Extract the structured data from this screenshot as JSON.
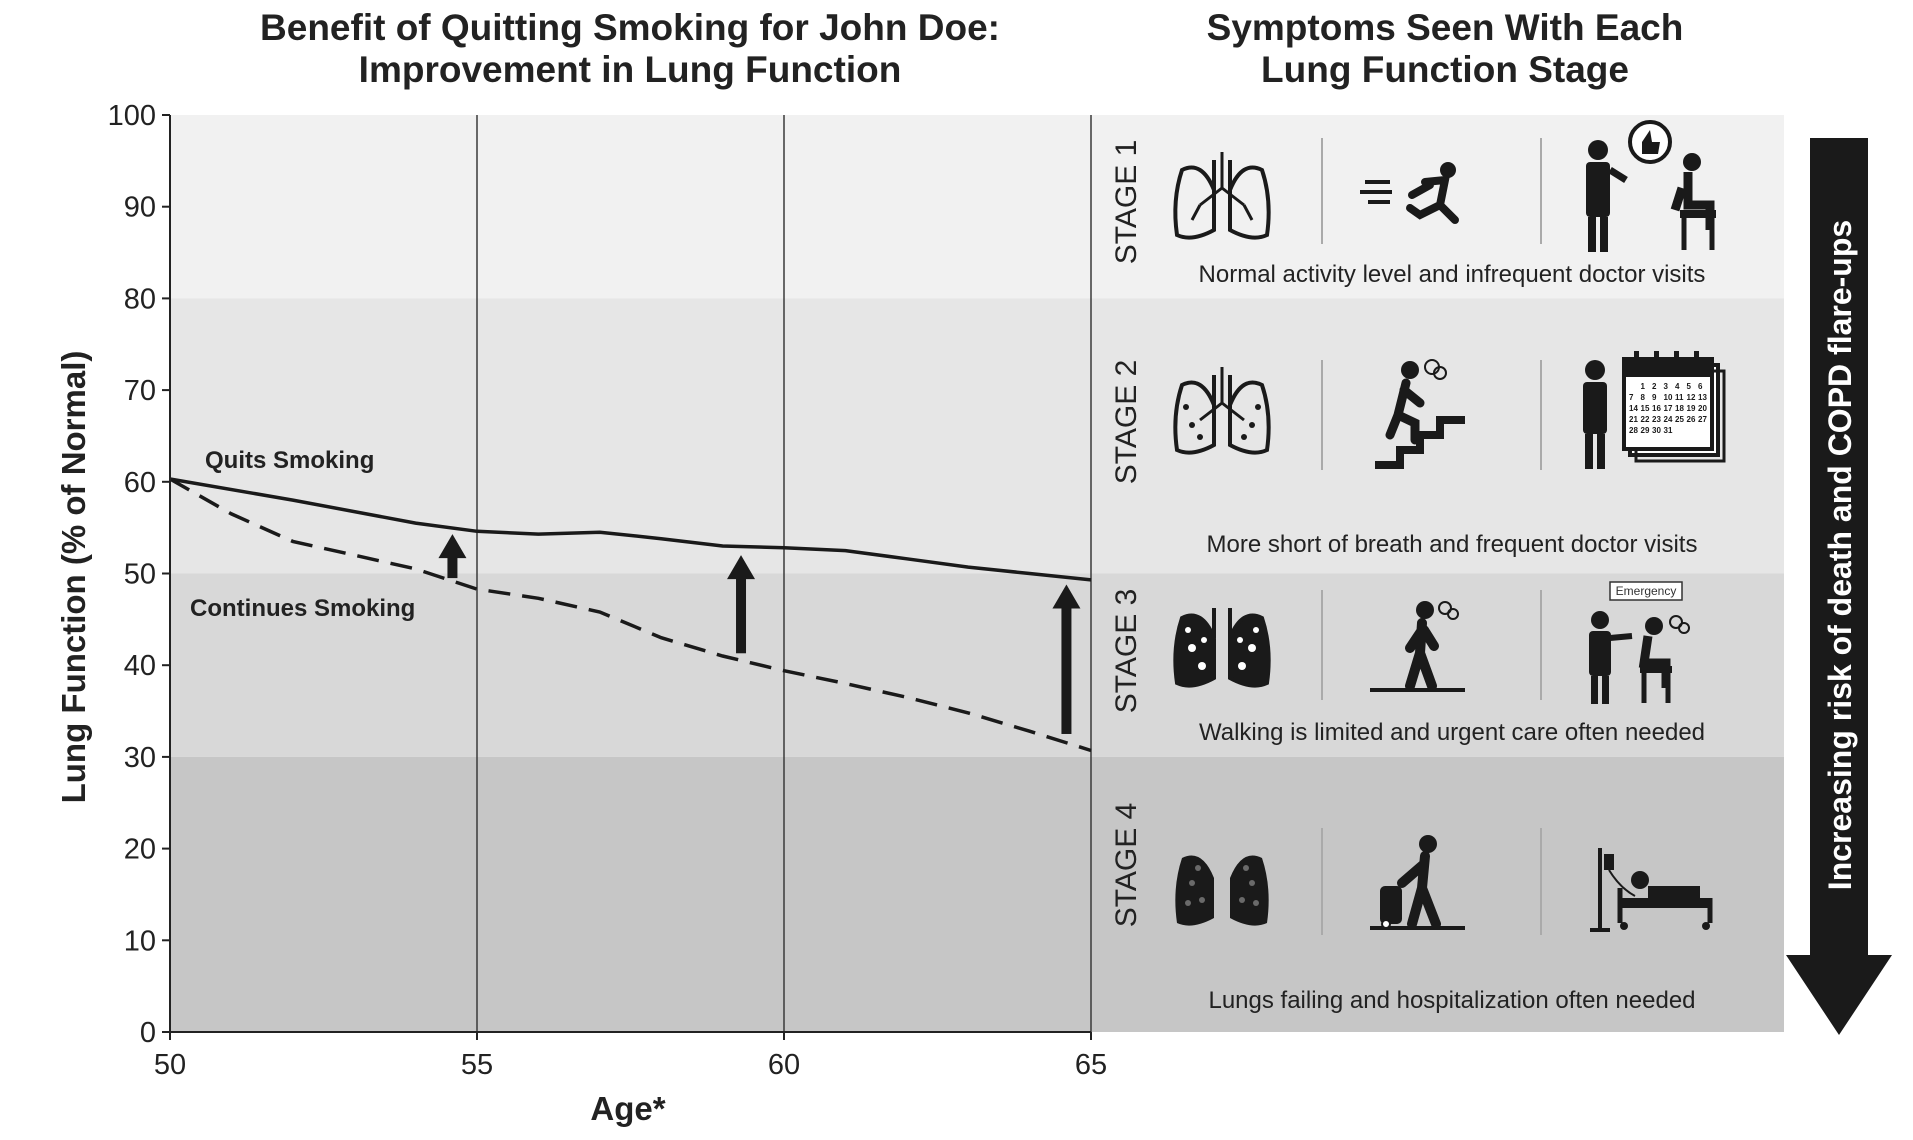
{
  "chart_data": {
    "type": "line",
    "title": "Benefit of Quitting Smoking for John Doe: Improvement in Lung Function",
    "title_lines": [
      "Benefit of Quitting Smoking for John Doe:",
      "Improvement in Lung Function"
    ],
    "xlabel": "Age*",
    "ylabel": "Lung Function (% of Normal)",
    "xlim": [
      50,
      65
    ],
    "ylim": [
      0,
      100
    ],
    "xticks": [
      50,
      55,
      60,
      65
    ],
    "yticks": [
      0,
      10,
      20,
      30,
      40,
      50,
      60,
      70,
      80,
      90,
      100
    ],
    "grid": "vertical lines at x ticks",
    "series": [
      {
        "name": "Quits Smoking",
        "style": "solid",
        "x": [
          50,
          52,
          54,
          55,
          56,
          57,
          58,
          59,
          60,
          61,
          62,
          63,
          64,
          65
        ],
        "y": [
          60.3,
          58.0,
          55.5,
          54.6,
          54.3,
          54.5,
          53.8,
          53.0,
          52.8,
          52.5,
          51.6,
          50.7,
          50.0,
          49.3
        ]
      },
      {
        "name": "Continues Smoking",
        "style": "dashed",
        "x": [
          50,
          51,
          52,
          54,
          55,
          56,
          57,
          58,
          59,
          60,
          61,
          62,
          63,
          64,
          65
        ],
        "y": [
          60.3,
          56.5,
          53.5,
          50.5,
          48.3,
          47.3,
          45.8,
          43.0,
          41.0,
          39.4,
          38.0,
          36.5,
          34.8,
          32.8,
          30.7
        ]
      }
    ],
    "arrows": [
      {
        "x": 54.6,
        "from": 49.5,
        "to": 54.3
      },
      {
        "x": 59.3,
        "from": 41.3,
        "to": 52.0
      },
      {
        "x": 64.6,
        "from": 32.5,
        "to": 48.8
      }
    ],
    "bands": [
      {
        "from": 80,
        "to": 100,
        "color": "#f1f1f1"
      },
      {
        "from": 50,
        "to": 80,
        "color": "#e6e6e6"
      },
      {
        "from": 30,
        "to": 50,
        "color": "#d8d8d8"
      },
      {
        "from": 0,
        "to": 30,
        "color": "#c6c6c6"
      }
    ]
  },
  "panel": {
    "title_lines": [
      "Symptoms Seen With Each",
      "Lung Function Stage"
    ],
    "stages": [
      {
        "label": "STAGE 1",
        "from": 80,
        "to": 100,
        "caption": "Normal activity level and infrequent doctor visits",
        "icons": [
          "healthy-lungs-icon",
          "running-person-icon",
          "doctor-thumbs-up-icon"
        ]
      },
      {
        "label": "STAGE 2",
        "from": 50,
        "to": 80,
        "caption": "More short of breath and frequent doctor visits",
        "icons": [
          "mild-lungs-icon",
          "climbing-stairs-breathless-icon",
          "doctor-calendar-icon"
        ]
      },
      {
        "label": "STAGE 3",
        "from": 30,
        "to": 50,
        "caption": "Walking is limited and urgent care often needed",
        "icons": [
          "damaged-lungs-icon",
          "walking-breathless-icon",
          "emergency-care-icon"
        ],
        "emergency_sign": "Emergency"
      },
      {
        "label": "STAGE 4",
        "from": 0,
        "to": 30,
        "caption": "Lungs failing and hospitalization often needed",
        "icons": [
          "failing-lungs-icon",
          "oxygen-tank-walker-icon",
          "hospital-bed-icon"
        ]
      }
    ]
  },
  "risk_arrow": {
    "text": "Increasing risk of death and COPD flare-ups",
    "color": "#1a1a1a"
  },
  "calendar_numbers": [
    [
      "1",
      "2",
      "3",
      "4",
      "5",
      "6"
    ],
    [
      "7",
      "8",
      "9",
      "10",
      "11",
      "12",
      "13"
    ],
    [
      "14",
      "15",
      "16",
      "17",
      "18",
      "19",
      "20"
    ],
    [
      "21",
      "22",
      "23",
      "24",
      "25",
      "26",
      "27"
    ],
    [
      "28",
      "29",
      "30",
      "31"
    ]
  ]
}
